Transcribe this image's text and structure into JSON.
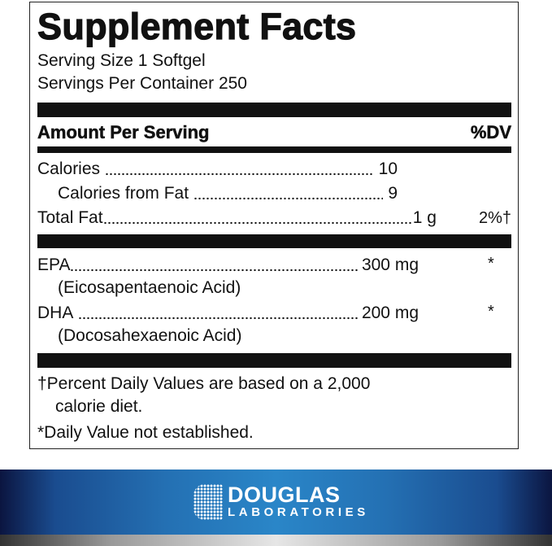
{
  "label": {
    "title": "Supplement Facts",
    "serving_size": "Serving Size 1 Softgel",
    "servings_per_container": "Servings Per Container 250",
    "header_amount": "Amount Per Serving",
    "header_dv": "%DV",
    "rows": [
      {
        "name": "Calories",
        "amount": "10",
        "dv": ""
      },
      {
        "name": "Calories from Fat",
        "amount": "9",
        "dv": ""
      },
      {
        "name": "Total Fat",
        "amount": "1 g",
        "dv": "2%†"
      },
      {
        "name": "EPA",
        "amount": "300 mg",
        "dv": "*",
        "sub": "(Eicosapentaenoic Acid)"
      },
      {
        "name": "DHA",
        "amount": "200 mg",
        "dv": "*",
        "sub": "(Docosahexaenoic Acid)"
      }
    ],
    "footnote1": "†Percent Daily Values are based on a 2,000",
    "footnote1b": "calorie diet.",
    "footnote2": "*Daily Value not established."
  },
  "brand": {
    "name": "DOUGLAS",
    "sub": "LABORATORIES",
    "colors": {
      "banner": "#2470b3",
      "dark": "#0b1540"
    }
  }
}
